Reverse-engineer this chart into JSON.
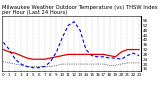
{
  "title": "Milwaukee Weather Outdoor Temperature (vs) THSW Index per Hour (Last 24 Hours)",
  "hours": [
    0,
    1,
    2,
    3,
    4,
    5,
    6,
    7,
    8,
    9,
    10,
    11,
    12,
    13,
    14,
    15,
    16,
    17,
    18,
    19,
    20,
    21,
    22,
    23
  ],
  "temp": [
    32,
    30,
    29,
    27,
    25,
    24,
    24,
    24,
    25,
    26,
    27,
    28,
    28,
    28,
    28,
    28,
    28,
    28,
    27,
    26,
    30,
    32,
    32,
    32
  ],
  "thsw": [
    38,
    32,
    24,
    20,
    18,
    17,
    17,
    18,
    22,
    30,
    42,
    52,
    55,
    48,
    32,
    27,
    26,
    26,
    25,
    25,
    24,
    27,
    29,
    27
  ],
  "dew": [
    22,
    21,
    20,
    19,
    18,
    18,
    18,
    18,
    18,
    19,
    20,
    20,
    20,
    20,
    20,
    20,
    20,
    20,
    19,
    19,
    20,
    21,
    21,
    21
  ],
  "temp_color": "#dd0000",
  "thsw_color": "#0000dd",
  "dew_color": "#000000",
  "bg_color": "#ffffff",
  "grid_color": "#999999",
  "ylim": [
    14,
    60
  ],
  "ytick_values": [
    16,
    20,
    24,
    28,
    32,
    36,
    40,
    44,
    48,
    52,
    56
  ],
  "title_fontsize": 3.8,
  "tick_fontsize": 3.0,
  "figsize": [
    1.6,
    0.87
  ],
  "dpi": 100
}
